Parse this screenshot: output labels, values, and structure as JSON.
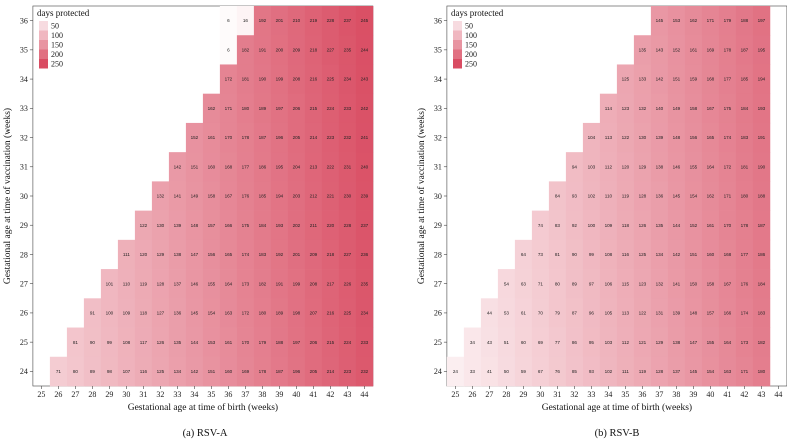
{
  "chart_data": [
    {
      "type": "heatmap",
      "caption": "(a) RSV-A",
      "xlabel": "Gestational age at time of birth (weeks)",
      "ylabel": "Gestational age at time of vaccination (weeks)",
      "x_ticks": [
        25,
        26,
        27,
        28,
        29,
        30,
        31,
        32,
        33,
        34,
        35,
        36,
        37,
        38,
        39,
        40,
        41,
        42,
        43,
        44
      ],
      "y_ticks": [
        24,
        25,
        26,
        27,
        28,
        29,
        30,
        31,
        32,
        33,
        34,
        35,
        36
      ],
      "legend": {
        "title": "days protected",
        "values": [
          50,
          100,
          150,
          200,
          250
        ]
      },
      "color_scale": {
        "min_value": 0,
        "max_value": 250,
        "min_color": "#ffffff",
        "max_color": "#d94c62"
      },
      "rows": [
        {
          "y": 36,
          "x_start": 36,
          "values": [
            6,
            16,
            192,
            201,
            210,
            219,
            228,
            237,
            245
          ]
        },
        {
          "y": 35,
          "x_start": 36,
          "values": [
            6,
            182,
            191,
            200,
            209,
            218,
            227,
            235,
            244
          ]
        },
        {
          "y": 34,
          "x_start": 36,
          "values": [
            172,
            181,
            190,
            199,
            208,
            216,
            225,
            234,
            243
          ]
        },
        {
          "y": 33,
          "x_start": 35,
          "values": [
            162,
            171,
            180,
            189,
            197,
            206,
            215,
            224,
            233,
            242
          ]
        },
        {
          "y": 32,
          "x_start": 34,
          "values": [
            152,
            161,
            170,
            178,
            187,
            196,
            205,
            214,
            223,
            232,
            241
          ]
        },
        {
          "y": 31,
          "x_start": 33,
          "values": [
            142,
            151,
            160,
            168,
            177,
            186,
            195,
            204,
            213,
            222,
            231,
            240
          ]
        },
        {
          "y": 30,
          "x_start": 32,
          "values": [
            132,
            141,
            149,
            158,
            167,
            176,
            185,
            194,
            203,
            212,
            221,
            230,
            239
          ]
        },
        {
          "y": 29,
          "x_start": 31,
          "values": [
            122,
            130,
            139,
            148,
            157,
            166,
            175,
            184,
            193,
            202,
            211,
            220,
            228,
            237
          ]
        },
        {
          "y": 28,
          "x_start": 30,
          "values": [
            111,
            120,
            129,
            138,
            147,
            156,
            165,
            174,
            183,
            192,
            201,
            209,
            218,
            227,
            236
          ]
        },
        {
          "y": 27,
          "x_start": 29,
          "values": [
            101,
            110,
            119,
            128,
            137,
            146,
            155,
            164,
            173,
            182,
            191,
            199,
            208,
            217,
            226,
            235
          ]
        },
        {
          "y": 26,
          "x_start": 28,
          "values": [
            91,
            100,
            109,
            118,
            127,
            136,
            145,
            154,
            163,
            172,
            180,
            189,
            198,
            207,
            216,
            225,
            234
          ]
        },
        {
          "y": 25,
          "x_start": 27,
          "values": [
            81,
            90,
            99,
            108,
            117,
            126,
            135,
            144,
            153,
            161,
            170,
            179,
            188,
            197,
            206,
            215,
            224,
            233
          ]
        },
        {
          "y": 24,
          "x_start": 26,
          "values": [
            71,
            80,
            89,
            98,
            107,
            116,
            125,
            134,
            142,
            151,
            160,
            169,
            178,
            187,
            196,
            205,
            214,
            223,
            232
          ]
        }
      ]
    },
    {
      "type": "heatmap",
      "caption": "(b) RSV-B",
      "xlabel": "Gestational age at time of birth (weeks)",
      "ylabel": "Gestational age at time of vaccination (weeks)",
      "x_ticks": [
        25,
        26,
        27,
        28,
        29,
        30,
        31,
        32,
        33,
        34,
        35,
        36,
        37,
        38,
        39,
        40,
        41,
        42,
        43,
        44
      ],
      "y_ticks": [
        24,
        25,
        26,
        27,
        28,
        29,
        30,
        31,
        32,
        33,
        34,
        35,
        36
      ],
      "legend": {
        "title": "days protected",
        "values": [
          50,
          100,
          150,
          200,
          250
        ]
      },
      "color_scale": {
        "min_value": 0,
        "max_value": 250,
        "min_color": "#ffffff",
        "max_color": "#d94c62"
      },
      "rows": [
        {
          "y": 36,
          "x_start": 37,
          "values": [
            145,
            153,
            162,
            171,
            179,
            188,
            197
          ]
        },
        {
          "y": 35,
          "x_start": 36,
          "values": [
            135,
            143,
            152,
            161,
            169,
            178,
            187,
            195
          ]
        },
        {
          "y": 34,
          "x_start": 35,
          "values": [
            125,
            133,
            142,
            151,
            159,
            168,
            177,
            185,
            194
          ]
        },
        {
          "y": 33,
          "x_start": 34,
          "values": [
            114,
            123,
            132,
            140,
            149,
            158,
            167,
            175,
            184,
            193
          ]
        },
        {
          "y": 32,
          "x_start": 33,
          "values": [
            104,
            113,
            122,
            130,
            139,
            148,
            156,
            165,
            174,
            183,
            191
          ]
        },
        {
          "y": 31,
          "x_start": 32,
          "values": [
            94,
            103,
            112,
            120,
            129,
            138,
            146,
            155,
            164,
            172,
            181,
            190
          ]
        },
        {
          "y": 30,
          "x_start": 31,
          "values": [
            84,
            93,
            102,
            110,
            119,
            128,
            136,
            145,
            154,
            162,
            171,
            180,
            188
          ]
        },
        {
          "y": 29,
          "x_start": 30,
          "values": [
            74,
            83,
            92,
            100,
            109,
            118,
            126,
            135,
            144,
            152,
            161,
            170,
            178,
            187
          ]
        },
        {
          "y": 28,
          "x_start": 29,
          "values": [
            64,
            73,
            81,
            90,
            99,
            108,
            116,
            125,
            134,
            142,
            151,
            160,
            168,
            177,
            186
          ]
        },
        {
          "y": 27,
          "x_start": 28,
          "values": [
            54,
            63,
            71,
            80,
            89,
            97,
            106,
            115,
            123,
            132,
            141,
            150,
            158,
            167,
            176,
            184
          ]
        },
        {
          "y": 26,
          "x_start": 27,
          "values": [
            44,
            53,
            61,
            70,
            79,
            87,
            96,
            105,
            113,
            122,
            131,
            139,
            148,
            157,
            166,
            174,
            183
          ]
        },
        {
          "y": 25,
          "x_start": 26,
          "values": [
            34,
            43,
            51,
            60,
            69,
            77,
            86,
            95,
            103,
            112,
            121,
            129,
            138,
            147,
            155,
            164,
            173,
            182
          ]
        },
        {
          "y": 24,
          "x_start": 25,
          "values": [
            24,
            33,
            41,
            50,
            59,
            67,
            76,
            85,
            93,
            102,
            111,
            119,
            128,
            137,
            145,
            154,
            163,
            171,
            180
          ]
        }
      ]
    }
  ]
}
